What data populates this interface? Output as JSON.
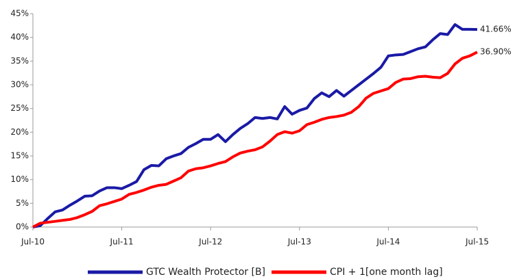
{
  "chart_data": {
    "type": "line",
    "categories": [
      "Jul-10",
      null,
      null,
      null,
      null,
      null,
      null,
      null,
      null,
      null,
      null,
      null,
      "Jul-11",
      null,
      null,
      null,
      null,
      null,
      null,
      null,
      null,
      null,
      null,
      null,
      "Jul-12",
      null,
      null,
      null,
      null,
      null,
      null,
      null,
      null,
      null,
      null,
      null,
      "Jul-13",
      null,
      null,
      null,
      null,
      null,
      null,
      null,
      null,
      null,
      null,
      null,
      "Jul-14",
      null,
      null,
      null,
      null,
      null,
      null,
      null,
      null,
      null,
      null,
      null,
      "Jul-15"
    ],
    "series": [
      {
        "name": "GTC Wealth Protector [B]",
        "color": "#1a1aa6",
        "values": [
          0,
          0.3,
          1.8,
          3.2,
          3.6,
          4.6,
          5.5,
          6.5,
          6.6,
          7.6,
          8.3,
          8.3,
          8.1,
          8.8,
          9.6,
          12.1,
          13.0,
          12.9,
          14.4,
          15.0,
          15.5,
          16.8,
          17.6,
          18.5,
          18.5,
          19.5,
          18.0,
          19.5,
          20.8,
          21.8,
          23.1,
          22.9,
          23.1,
          22.8,
          25.4,
          23.8,
          24.6,
          25.1,
          27.1,
          28.3,
          27.5,
          28.8,
          27.6,
          28.8,
          30.0,
          31.2,
          32.4,
          33.7,
          36.1,
          36.3,
          36.4,
          37.0,
          37.6,
          38.0,
          39.5,
          40.8,
          40.6,
          42.7,
          41.7,
          41.7,
          41.66
        ],
        "value_labels": [
          null,
          null,
          null,
          null,
          null,
          null,
          null,
          null,
          null,
          null,
          null,
          null,
          null,
          null,
          null,
          null,
          null,
          null,
          null,
          null,
          null,
          null,
          null,
          null,
          null,
          null,
          null,
          null,
          null,
          null,
          null,
          null,
          null,
          null,
          null,
          null,
          null,
          null,
          null,
          null,
          null,
          null,
          null,
          null,
          null,
          null,
          null,
          null,
          null,
          null,
          null,
          null,
          null,
          null,
          null,
          null,
          null,
          null,
          null,
          null,
          "41.66%"
        ]
      },
      {
        "name": "CPI + 1[one month lag]",
        "color": "#ff0000",
        "values": [
          0,
          0.8,
          1.0,
          1.2,
          1.4,
          1.6,
          2.0,
          2.6,
          3.3,
          4.5,
          4.9,
          5.4,
          5.9,
          6.9,
          7.3,
          7.8,
          8.4,
          8.8,
          9.0,
          9.7,
          10.4,
          11.8,
          12.3,
          12.5,
          12.9,
          13.4,
          13.8,
          14.8,
          15.6,
          16.0,
          16.3,
          16.9,
          18.1,
          19.5,
          20.1,
          19.8,
          20.3,
          21.6,
          22.1,
          22.7,
          23.1,
          23.3,
          23.6,
          24.2,
          25.4,
          27.2,
          28.2,
          28.7,
          29.2,
          30.5,
          31.2,
          31.3,
          31.7,
          31.8,
          31.6,
          31.5,
          32.4,
          34.4,
          35.6,
          36.1,
          36.9
        ],
        "value_labels": [
          null,
          null,
          null,
          null,
          null,
          null,
          null,
          null,
          null,
          null,
          null,
          null,
          null,
          null,
          null,
          null,
          null,
          null,
          null,
          null,
          null,
          null,
          null,
          null,
          null,
          null,
          null,
          null,
          null,
          null,
          null,
          null,
          null,
          null,
          null,
          null,
          null,
          null,
          null,
          null,
          null,
          null,
          null,
          null,
          null,
          null,
          null,
          null,
          null,
          null,
          null,
          null,
          null,
          null,
          null,
          null,
          null,
          null,
          null,
          null,
          "36.90%"
        ]
      }
    ],
    "ylim": [
      0,
      45
    ],
    "yticks": [
      {
        "value": 0,
        "label": "0%"
      },
      {
        "value": 5,
        "label": "5%"
      },
      {
        "value": 10,
        "label": "10%"
      },
      {
        "value": 15,
        "label": "15%"
      },
      {
        "value": 20,
        "label": "20%"
      },
      {
        "value": 25,
        "label": "25%"
      },
      {
        "value": 30,
        "label": "30%"
      },
      {
        "value": 35,
        "label": "35%"
      },
      {
        "value": 40,
        "label": "40%"
      },
      {
        "value": 45,
        "label": "45%"
      }
    ],
    "grid": false,
    "legend": "bottom"
  }
}
